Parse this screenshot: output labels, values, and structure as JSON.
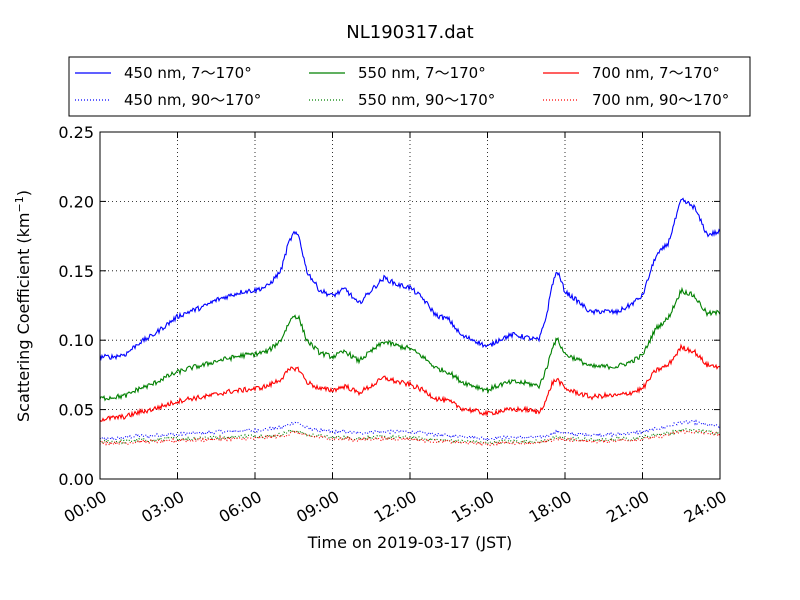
{
  "chart_data": {
    "type": "line",
    "title": "NL190317.dat",
    "xlabel": "Time on 2019-03-17 (JST)",
    "ylabel_main": "Scattering Coefficient (km",
    "ylabel_sup": "−1",
    "ylabel_close": ")",
    "xlim": [
      "00:00",
      "24:00"
    ],
    "ylim": [
      0,
      0.25
    ],
    "x_ticks": [
      "00:00",
      "03:00",
      "06:00",
      "09:00",
      "12:00",
      "15:00",
      "18:00",
      "21:00",
      "24:00"
    ],
    "y_ticks": [
      "0.00",
      "0.05",
      "0.10",
      "0.15",
      "0.20",
      "0.25"
    ],
    "grid": true,
    "legend_location": "top",
    "x_hours": [
      0,
      0.5,
      1,
      1.5,
      2,
      2.5,
      3,
      3.5,
      4,
      4.5,
      5,
      5.5,
      6,
      6.5,
      7,
      7.3,
      7.5,
      7.7,
      8,
      8.5,
      9,
      9.5,
      10,
      10.5,
      11,
      11.5,
      12,
      12.5,
      13,
      13.5,
      14,
      14.5,
      15,
      15.5,
      16,
      16.5,
      17,
      17.3,
      17.5,
      17.7,
      18,
      18.5,
      19,
      19.5,
      20,
      20.5,
      21,
      21.5,
      22,
      22.5,
      23,
      23.5,
      24
    ],
    "series": [
      {
        "name": "450 nm, 7～170°",
        "color": "#0000ff",
        "style": "solid",
        "values": [
          0.088,
          0.088,
          0.09,
          0.098,
          0.103,
          0.11,
          0.117,
          0.121,
          0.124,
          0.129,
          0.132,
          0.135,
          0.136,
          0.139,
          0.15,
          0.17,
          0.177,
          0.175,
          0.15,
          0.136,
          0.132,
          0.137,
          0.126,
          0.136,
          0.145,
          0.14,
          0.138,
          0.13,
          0.118,
          0.115,
          0.103,
          0.1,
          0.095,
          0.101,
          0.104,
          0.102,
          0.1,
          0.119,
          0.14,
          0.15,
          0.135,
          0.128,
          0.12,
          0.121,
          0.12,
          0.125,
          0.132,
          0.16,
          0.17,
          0.201,
          0.196,
          0.176,
          0.178
        ]
      },
      {
        "name": "450 nm, 90～170°",
        "color": "#0000ff",
        "style": "dotted",
        "values": [
          0.029,
          0.029,
          0.03,
          0.031,
          0.031,
          0.032,
          0.032,
          0.033,
          0.033,
          0.034,
          0.034,
          0.035,
          0.035,
          0.036,
          0.037,
          0.039,
          0.041,
          0.04,
          0.037,
          0.035,
          0.034,
          0.034,
          0.033,
          0.034,
          0.034,
          0.034,
          0.034,
          0.033,
          0.032,
          0.031,
          0.031,
          0.03,
          0.029,
          0.03,
          0.03,
          0.03,
          0.03,
          0.031,
          0.033,
          0.034,
          0.033,
          0.032,
          0.032,
          0.032,
          0.032,
          0.033,
          0.034,
          0.036,
          0.038,
          0.041,
          0.041,
          0.039,
          0.038
        ]
      },
      {
        "name": "550 nm, 7～170°",
        "color": "#008000",
        "style": "solid",
        "values": [
          0.058,
          0.059,
          0.06,
          0.065,
          0.068,
          0.073,
          0.077,
          0.08,
          0.082,
          0.085,
          0.087,
          0.089,
          0.09,
          0.092,
          0.1,
          0.112,
          0.118,
          0.116,
          0.1,
          0.091,
          0.088,
          0.092,
          0.085,
          0.092,
          0.099,
          0.096,
          0.094,
          0.088,
          0.08,
          0.077,
          0.07,
          0.067,
          0.064,
          0.068,
          0.07,
          0.069,
          0.067,
          0.08,
          0.095,
          0.101,
          0.09,
          0.086,
          0.081,
          0.081,
          0.081,
          0.084,
          0.089,
          0.108,
          0.116,
          0.136,
          0.132,
          0.119,
          0.12
        ]
      },
      {
        "name": "550 nm, 90～170°",
        "color": "#008000",
        "style": "dotted",
        "values": [
          0.027,
          0.027,
          0.027,
          0.028,
          0.028,
          0.029,
          0.029,
          0.029,
          0.03,
          0.03,
          0.03,
          0.031,
          0.031,
          0.031,
          0.032,
          0.034,
          0.035,
          0.034,
          0.032,
          0.031,
          0.03,
          0.03,
          0.029,
          0.03,
          0.03,
          0.03,
          0.03,
          0.029,
          0.028,
          0.028,
          0.027,
          0.027,
          0.026,
          0.027,
          0.027,
          0.027,
          0.027,
          0.028,
          0.029,
          0.03,
          0.029,
          0.029,
          0.028,
          0.028,
          0.029,
          0.029,
          0.03,
          0.032,
          0.033,
          0.035,
          0.035,
          0.034,
          0.033
        ]
      },
      {
        "name": "700 nm, 7～170°",
        "color": "#ff0000",
        "style": "solid",
        "values": [
          0.043,
          0.044,
          0.045,
          0.048,
          0.05,
          0.053,
          0.056,
          0.058,
          0.059,
          0.061,
          0.063,
          0.064,
          0.065,
          0.067,
          0.072,
          0.078,
          0.08,
          0.079,
          0.07,
          0.065,
          0.064,
          0.067,
          0.062,
          0.067,
          0.073,
          0.07,
          0.068,
          0.064,
          0.058,
          0.056,
          0.051,
          0.049,
          0.047,
          0.049,
          0.05,
          0.05,
          0.048,
          0.058,
          0.069,
          0.072,
          0.065,
          0.062,
          0.059,
          0.06,
          0.06,
          0.062,
          0.065,
          0.078,
          0.082,
          0.095,
          0.092,
          0.082,
          0.081
        ]
      },
      {
        "name": "700 nm, 90～170°",
        "color": "#ff0000",
        "style": "dotted",
        "values": [
          0.026,
          0.026,
          0.026,
          0.027,
          0.027,
          0.027,
          0.028,
          0.028,
          0.028,
          0.029,
          0.029,
          0.029,
          0.029,
          0.03,
          0.031,
          0.032,
          0.034,
          0.033,
          0.031,
          0.03,
          0.029,
          0.029,
          0.028,
          0.029,
          0.029,
          0.029,
          0.029,
          0.028,
          0.027,
          0.027,
          0.026,
          0.026,
          0.025,
          0.026,
          0.026,
          0.026,
          0.026,
          0.027,
          0.028,
          0.029,
          0.028,
          0.028,
          0.027,
          0.027,
          0.028,
          0.028,
          0.029,
          0.03,
          0.032,
          0.034,
          0.034,
          0.033,
          0.032
        ]
      }
    ]
  }
}
